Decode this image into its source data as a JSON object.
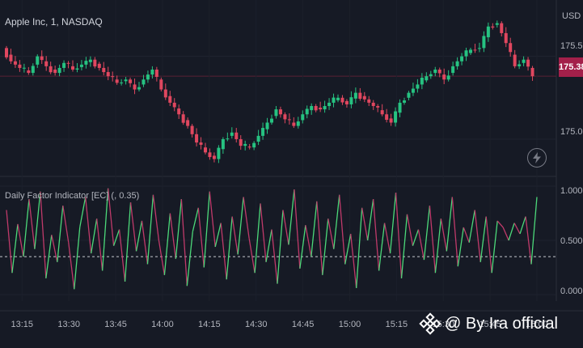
{
  "header": {
    "symbol_title": "Apple Inc, 1, NASDAQ",
    "currency": "USD",
    "last_price": "175.38"
  },
  "indicator": {
    "title": "Daily Factor Indicator [EC] (, 0.35)",
    "threshold": 0.35
  },
  "price_axis": {
    "labels": [
      "175.50",
      "175.00"
    ],
    "values": [
      175.5,
      175.0
    ],
    "ylim": [
      174.78,
      175.84
    ]
  },
  "osc_axis": {
    "labels": [
      "1.0000",
      "0.5000",
      "0.0000"
    ],
    "values": [
      1.0,
      0.5,
      0.0
    ],
    "ylim": [
      -0.06,
      1.06
    ]
  },
  "time_axis": {
    "labels": [
      "13:15",
      "13:30",
      "13:45",
      "14:00",
      "14:15",
      "14:30",
      "14:45",
      "15:00",
      "15:15",
      "15:30",
      "15:45",
      "16:00"
    ]
  },
  "watermark": {
    "text": "@ By Ira official",
    "icon": "binance-logo-icon"
  },
  "colors": {
    "background": "#161a25",
    "up": "#26c281",
    "down": "#e0475f",
    "osc_up": "#4cd97a",
    "osc_down": "#c03a6a",
    "price_tag": "#a3204a"
  },
  "chart_data": [
    {
      "type": "candlestick",
      "symbol": "Apple Inc, 1, NASDAQ",
      "interval": "1",
      "x_start": "13:10",
      "x_end": "16:00",
      "close_path": [
        175.55,
        175.47,
        175.43,
        175.4,
        175.5,
        175.44,
        175.4,
        175.46,
        175.42,
        175.45,
        175.48,
        175.43,
        175.38,
        175.34,
        175.36,
        175.3,
        175.36,
        175.42,
        175.3,
        175.22,
        175.15,
        175.08,
        174.98,
        174.92,
        174.88,
        175.0,
        175.04,
        174.96,
        174.95,
        175.02,
        175.1,
        175.18,
        175.12,
        175.08,
        175.15,
        175.2,
        175.18,
        175.22,
        175.25,
        175.21,
        175.28,
        175.24,
        175.2,
        175.15,
        175.1,
        175.22,
        175.28,
        175.33,
        175.38,
        175.42,
        175.36,
        175.44,
        175.5,
        175.54,
        175.55,
        175.68,
        175.7,
        175.58,
        175.44,
        175.48,
        175.38
      ],
      "last_price": 175.38,
      "ylim": [
        174.78,
        175.84
      ],
      "y_ticks": [
        175.5,
        175.0
      ]
    },
    {
      "type": "line",
      "name": "Daily Factor Indicator [EC]",
      "threshold": 0.35,
      "ylim": [
        -0.06,
        1.06
      ],
      "y_ticks": [
        1.0,
        0.5,
        0.0
      ],
      "values": [
        0.78,
        0.2,
        0.65,
        0.35,
        0.88,
        0.42,
        0.95,
        0.15,
        0.55,
        0.3,
        0.82,
        0.48,
        0.05,
        0.62,
        0.9,
        0.38,
        0.7,
        0.22,
        0.98,
        0.45,
        0.6,
        0.12,
        0.85,
        0.4,
        0.68,
        0.28,
        0.92,
        0.5,
        0.18,
        0.75,
        0.33,
        0.88,
        0.08,
        0.58,
        0.8,
        0.25,
        0.95,
        0.44,
        0.66,
        0.14,
        0.72,
        0.37,
        0.9,
        0.52,
        0.2,
        0.84,
        0.3,
        0.6,
        0.1,
        0.78,
        0.46,
        0.97,
        0.24,
        0.64,
        0.35,
        0.86,
        0.18,
        0.7,
        0.42,
        0.92,
        0.28,
        0.56,
        0.06,
        0.8,
        0.5,
        0.88,
        0.22,
        0.66,
        0.38,
        0.94,
        0.15,
        0.74,
        0.45,
        0.6,
        0.32,
        0.82,
        0.2,
        0.7,
        0.4,
        0.9,
        0.26,
        0.62,
        0.48,
        0.78,
        0.3,
        0.72,
        0.2,
        0.68,
        0.62,
        0.5,
        0.66,
        0.56,
        0.72,
        0.28,
        0.9
      ]
    }
  ]
}
